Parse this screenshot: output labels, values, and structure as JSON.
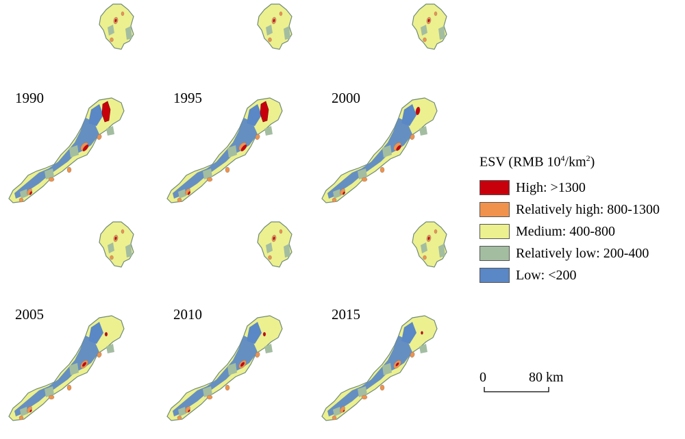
{
  "legend": {
    "title_prefix": "ESV (RMB 10",
    "title_sup1": "4",
    "title_mid": "/km",
    "title_sup2": "2",
    "title_suffix": ")",
    "items": [
      {
        "label": "High: >1300",
        "color": "#c8000c"
      },
      {
        "label": "Relatively high: 800-1300",
        "color": "#f0924c"
      },
      {
        "label": "Medium: 400-800",
        "color": "#ecf08e"
      },
      {
        "label": "Relatively low: 200-400",
        "color": "#a3bda0"
      },
      {
        "label": "Low: <200",
        "color": "#5a87c5"
      }
    ]
  },
  "scale_bar": {
    "start": "0",
    "end": "80 km"
  },
  "panels": [
    {
      "year": "1990",
      "high_extent": "large"
    },
    {
      "year": "1995",
      "high_extent": "large"
    },
    {
      "year": "2000",
      "high_extent": "medium"
    },
    {
      "year": "2005",
      "high_extent": "small"
    },
    {
      "year": "2010",
      "high_extent": "small"
    },
    {
      "year": "2015",
      "high_extent": "minimal"
    }
  ]
}
